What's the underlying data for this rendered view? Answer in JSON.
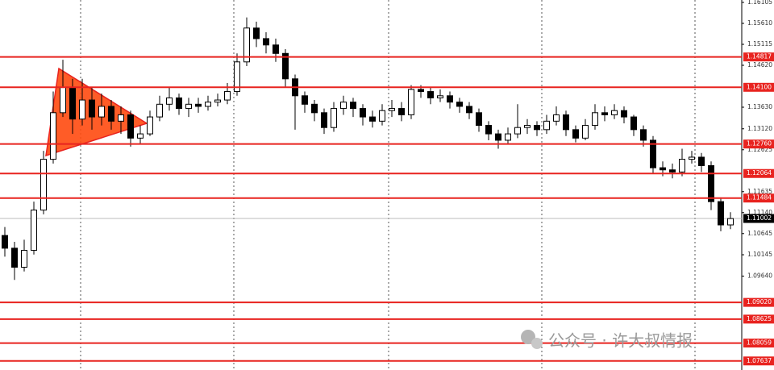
{
  "chart_data": {
    "type": "candlestick",
    "ylim": [
      1.07423,
      1.16162
    ],
    "yticks": [
      1.16105,
      {
        "value": 1.1561,
        "label": "1.15610"
      },
      1.15115,
      {
        "value": 1.1462,
        "label": "1.14620"
      },
      {
        "value": 1.1363,
        "label": "1.13630"
      },
      {
        "value": 1.1312,
        "label": "1.13120"
      },
      1.12625,
      1.11635,
      {
        "value": 1.1114,
        "label": "1.11140"
      },
      1.10645,
      1.10145,
      {
        "value": 1.0964,
        "label": "1.09640"
      }
    ],
    "levels": [
      1.14817,
      {
        "value": 1.141,
        "label": "1.14100"
      },
      {
        "value": 1.1276,
        "label": "1.12760"
      },
      1.12064,
      1.11484,
      {
        "value": 1.0902,
        "label": "1.09020"
      },
      1.08625,
      1.08059,
      1.07637
    ],
    "level_color": "#e8231f",
    "current_price": 1.11002,
    "up_color": "#ffffff",
    "down_color": "#000000",
    "watermark": "公众号 · 许大叔情报",
    "series": [
      {
        "name": "open",
        "values": [
          1.106,
          1.103,
          1.0985,
          1.1025,
          1.112,
          1.124,
          1.135,
          1.141,
          1.1335,
          1.138,
          1.134,
          1.1365,
          1.133,
          1.1345,
          1.129,
          1.13,
          1.134,
          1.137,
          1.1385,
          1.136,
          1.137,
          1.1365,
          1.1375,
          1.138,
          1.14,
          1.147,
          1.155,
          1.1525,
          1.151,
          1.149,
          1.143,
          1.139,
          1.137,
          1.135,
          1.1315,
          1.136,
          1.1375,
          1.136,
          1.134,
          1.133,
          1.1355,
          1.136,
          1.1345,
          1.1405,
          1.14,
          1.1385,
          1.139,
          1.1375,
          1.1365,
          1.135,
          1.132,
          1.13,
          1.1285,
          1.13,
          1.1315,
          1.132,
          1.131,
          1.133,
          1.1345,
          1.131,
          1.129,
          1.132,
          1.135,
          1.1345,
          1.1355,
          1.134,
          1.131,
          1.1285,
          1.122,
          1.1215,
          1.121,
          1.124,
          1.1245,
          1.1225,
          1.114,
          1.1085
        ]
      },
      {
        "name": "high",
        "values": [
          1.108,
          1.1045,
          1.105,
          1.114,
          1.126,
          1.14,
          1.1475,
          1.143,
          1.143,
          1.141,
          1.1395,
          1.138,
          1.1365,
          1.1355,
          1.132,
          1.1355,
          1.139,
          1.141,
          1.1395,
          1.1385,
          1.1385,
          1.139,
          1.1395,
          1.142,
          1.149,
          1.1575,
          1.1565,
          1.154,
          1.1525,
          1.15,
          1.144,
          1.14,
          1.138,
          1.136,
          1.1375,
          1.139,
          1.1385,
          1.137,
          1.1355,
          1.137,
          1.138,
          1.1375,
          1.1415,
          1.1415,
          1.141,
          1.1405,
          1.14,
          1.1385,
          1.1375,
          1.136,
          1.133,
          1.131,
          1.1315,
          1.137,
          1.1335,
          1.133,
          1.1345,
          1.1365,
          1.1355,
          1.132,
          1.1335,
          1.137,
          1.1365,
          1.137,
          1.1365,
          1.1345,
          1.132,
          1.1295,
          1.1235,
          1.123,
          1.1265,
          1.126,
          1.1255,
          1.1235,
          1.115,
          1.1115
        ]
      },
      {
        "name": "low",
        "values": [
          1.101,
          1.0955,
          1.0975,
          1.1015,
          1.111,
          1.123,
          1.134,
          1.13,
          1.132,
          1.131,
          1.132,
          1.131,
          1.13,
          1.127,
          1.1275,
          1.1295,
          1.133,
          1.1355,
          1.1345,
          1.134,
          1.135,
          1.1355,
          1.1365,
          1.137,
          1.139,
          1.146,
          1.1505,
          1.149,
          1.147,
          1.141,
          1.131,
          1.135,
          1.133,
          1.13,
          1.1305,
          1.1345,
          1.134,
          1.132,
          1.1315,
          1.132,
          1.134,
          1.133,
          1.1335,
          1.1385,
          1.137,
          1.1375,
          1.136,
          1.135,
          1.1335,
          1.1305,
          1.1285,
          1.1265,
          1.1275,
          1.129,
          1.13,
          1.1295,
          1.13,
          1.132,
          1.1295,
          1.128,
          1.1285,
          1.131,
          1.133,
          1.1335,
          1.1325,
          1.1295,
          1.127,
          1.1205,
          1.12,
          1.1195,
          1.12,
          1.123,
          1.121,
          1.112,
          1.107,
          1.1075
        ]
      },
      {
        "name": "close",
        "values": [
          1.103,
          1.0985,
          1.1025,
          1.112,
          1.124,
          1.135,
          1.141,
          1.1335,
          1.138,
          1.134,
          1.1365,
          1.133,
          1.1345,
          1.129,
          1.13,
          1.134,
          1.137,
          1.1385,
          1.136,
          1.137,
          1.1365,
          1.1375,
          1.138,
          1.14,
          1.147,
          1.155,
          1.1525,
          1.151,
          1.149,
          1.143,
          1.139,
          1.137,
          1.135,
          1.1315,
          1.136,
          1.1375,
          1.136,
          1.134,
          1.133,
          1.1355,
          1.136,
          1.1345,
          1.1405,
          1.14,
          1.1385,
          1.139,
          1.1375,
          1.1365,
          1.135,
          1.132,
          1.13,
          1.1285,
          1.13,
          1.1315,
          1.132,
          1.131,
          1.133,
          1.1345,
          1.131,
          1.129,
          1.132,
          1.135,
          1.1345,
          1.1355,
          1.134,
          1.131,
          1.1285,
          1.122,
          1.1215,
          1.121,
          1.124,
          1.1245,
          1.1225,
          1.114,
          1.1085,
          1.11
        ]
      }
    ]
  }
}
